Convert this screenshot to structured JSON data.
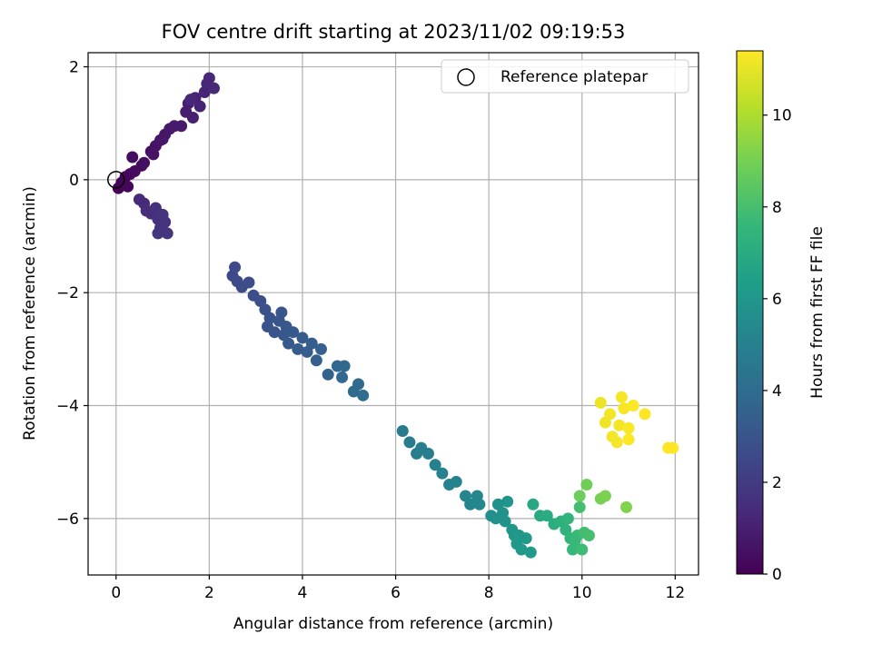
{
  "chart_data": {
    "type": "scatter",
    "title": "FOV centre drift starting at 2023/11/02 09:19:53",
    "xlabel": "Angular distance from reference (arcmin)",
    "ylabel": "Rotation from reference (arcmin)",
    "xlim": [
      -0.6,
      12.5
    ],
    "ylim": [
      -7.0,
      2.25
    ],
    "xticks": [
      0,
      2,
      4,
      6,
      8,
      10,
      12
    ],
    "yticks": [
      -6,
      -4,
      -2,
      0,
      2
    ],
    "grid": true,
    "legend": {
      "position": "top-right",
      "entries": [
        "Reference platepar"
      ]
    },
    "reference_point": {
      "x": 0,
      "y": 0,
      "marker": "open-circle"
    },
    "colorbar": {
      "label": "Hours from first FF file",
      "colormap": "viridis",
      "range": [
        0,
        11.4
      ],
      "ticks": [
        0,
        2,
        4,
        6,
        8,
        10
      ]
    },
    "colormap_stops": [
      "#440154",
      "#482878",
      "#3e4989",
      "#31688e",
      "#26828e",
      "#1f9e89",
      "#35b779",
      "#6ece58",
      "#b5de2b",
      "#fde725"
    ],
    "points": [
      {
        "x": 0.05,
        "y": -0.15,
        "c": 0.05
      },
      {
        "x": 0.12,
        "y": -0.05,
        "c": 0.1
      },
      {
        "x": 0.2,
        "y": 0.05,
        "c": 0.15
      },
      {
        "x": 0.3,
        "y": 0.1,
        "c": 0.2
      },
      {
        "x": 0.25,
        "y": -0.12,
        "c": 0.22
      },
      {
        "x": 0.4,
        "y": 0.15,
        "c": 0.3
      },
      {
        "x": 0.55,
        "y": 0.25,
        "c": 0.35
      },
      {
        "x": 0.35,
        "y": 0.4,
        "c": 0.4
      },
      {
        "x": 0.6,
        "y": 0.3,
        "c": 0.45
      },
      {
        "x": 0.75,
        "y": 0.5,
        "c": 0.5
      },
      {
        "x": 0.85,
        "y": 0.6,
        "c": 0.55
      },
      {
        "x": 0.8,
        "y": 0.45,
        "c": 0.6
      },
      {
        "x": 0.95,
        "y": 0.7,
        "c": 0.65
      },
      {
        "x": 1.05,
        "y": 0.8,
        "c": 0.7
      },
      {
        "x": 1.15,
        "y": 0.9,
        "c": 0.75
      },
      {
        "x": 1.25,
        "y": 0.95,
        "c": 0.8
      },
      {
        "x": 1.4,
        "y": 0.95,
        "c": 0.85
      },
      {
        "x": 1.5,
        "y": 1.2,
        "c": 0.9
      },
      {
        "x": 1.55,
        "y": 1.35,
        "c": 0.95
      },
      {
        "x": 1.65,
        "y": 1.1,
        "c": 1.0
      },
      {
        "x": 1.7,
        "y": 1.45,
        "c": 1.05
      },
      {
        "x": 1.8,
        "y": 1.3,
        "c": 1.1
      },
      {
        "x": 1.9,
        "y": 1.55,
        "c": 1.15
      },
      {
        "x": 1.95,
        "y": 1.7,
        "c": 1.2
      },
      {
        "x": 2.0,
        "y": 1.8,
        "c": 1.25
      },
      {
        "x": 2.1,
        "y": 1.62,
        "c": 1.3
      },
      {
        "x": 1.6,
        "y": 1.42,
        "c": 1.32
      },
      {
        "x": 1.0,
        "y": 0.72,
        "c": 0.68
      },
      {
        "x": 0.5,
        "y": -0.35,
        "c": 1.35
      },
      {
        "x": 0.6,
        "y": -0.42,
        "c": 1.4
      },
      {
        "x": 0.65,
        "y": -0.55,
        "c": 1.45
      },
      {
        "x": 0.75,
        "y": -0.6,
        "c": 1.5
      },
      {
        "x": 0.85,
        "y": -0.5,
        "c": 1.55
      },
      {
        "x": 0.9,
        "y": -0.7,
        "c": 1.6
      },
      {
        "x": 0.95,
        "y": -0.85,
        "c": 1.65
      },
      {
        "x": 1.05,
        "y": -0.75,
        "c": 1.7
      },
      {
        "x": 1.1,
        "y": -0.95,
        "c": 1.75
      },
      {
        "x": 0.9,
        "y": -0.95,
        "c": 1.78
      },
      {
        "x": 1.0,
        "y": -0.62,
        "c": 1.72
      },
      {
        "x": 2.5,
        "y": -1.7,
        "c": 2.5
      },
      {
        "x": 2.55,
        "y": -1.55,
        "c": 2.55
      },
      {
        "x": 2.6,
        "y": -1.8,
        "c": 2.6
      },
      {
        "x": 2.7,
        "y": -1.9,
        "c": 2.65
      },
      {
        "x": 2.85,
        "y": -1.82,
        "c": 2.7
      },
      {
        "x": 2.95,
        "y": -2.05,
        "c": 2.75
      },
      {
        "x": 3.1,
        "y": -2.15,
        "c": 2.8
      },
      {
        "x": 3.2,
        "y": -2.3,
        "c": 2.85
      },
      {
        "x": 3.3,
        "y": -2.45,
        "c": 2.9
      },
      {
        "x": 3.25,
        "y": -2.6,
        "c": 2.95
      },
      {
        "x": 3.4,
        "y": -2.7,
        "c": 3.0
      },
      {
        "x": 3.5,
        "y": -2.5,
        "c": 3.05
      },
      {
        "x": 3.6,
        "y": -2.75,
        "c": 3.1
      },
      {
        "x": 3.7,
        "y": -2.9,
        "c": 3.15
      },
      {
        "x": 3.8,
        "y": -2.7,
        "c": 3.2
      },
      {
        "x": 3.9,
        "y": -3.0,
        "c": 3.25
      },
      {
        "x": 4.0,
        "y": -2.8,
        "c": 3.3
      },
      {
        "x": 4.1,
        "y": -3.05,
        "c": 3.35
      },
      {
        "x": 4.2,
        "y": -2.9,
        "c": 3.4
      },
      {
        "x": 4.3,
        "y": -3.2,
        "c": 3.45
      },
      {
        "x": 4.4,
        "y": -3.0,
        "c": 3.5
      },
      {
        "x": 4.55,
        "y": -3.45,
        "c": 3.6
      },
      {
        "x": 4.75,
        "y": -3.3,
        "c": 3.7
      },
      {
        "x": 4.85,
        "y": -3.5,
        "c": 3.75
      },
      {
        "x": 4.9,
        "y": -3.3,
        "c": 3.8
      },
      {
        "x": 5.1,
        "y": -3.75,
        "c": 3.9
      },
      {
        "x": 5.2,
        "y": -3.62,
        "c": 3.95
      },
      {
        "x": 5.3,
        "y": -3.82,
        "c": 4.0
      },
      {
        "x": 3.55,
        "y": -2.35,
        "c": 3.08
      },
      {
        "x": 3.65,
        "y": -2.6,
        "c": 3.12
      },
      {
        "x": 6.15,
        "y": -4.45,
        "c": 4.7
      },
      {
        "x": 6.3,
        "y": -4.65,
        "c": 4.75
      },
      {
        "x": 6.45,
        "y": -4.85,
        "c": 4.8
      },
      {
        "x": 6.55,
        "y": -4.75,
        "c": 4.85
      },
      {
        "x": 6.7,
        "y": -4.85,
        "c": 4.9
      },
      {
        "x": 6.85,
        "y": -5.05,
        "c": 4.95
      },
      {
        "x": 7.0,
        "y": -5.2,
        "c": 5.0
      },
      {
        "x": 7.15,
        "y": -5.4,
        "c": 5.05
      },
      {
        "x": 7.3,
        "y": -5.35,
        "c": 5.1
      },
      {
        "x": 7.5,
        "y": -5.6,
        "c": 5.15
      },
      {
        "x": 7.6,
        "y": -5.75,
        "c": 5.2
      },
      {
        "x": 7.75,
        "y": -5.6,
        "c": 5.25
      },
      {
        "x": 7.8,
        "y": -5.75,
        "c": 5.3
      },
      {
        "x": 8.05,
        "y": -5.95,
        "c": 5.6
      },
      {
        "x": 8.15,
        "y": -6.0,
        "c": 5.7
      },
      {
        "x": 8.2,
        "y": -5.75,
        "c": 5.75
      },
      {
        "x": 8.3,
        "y": -5.9,
        "c": 5.8
      },
      {
        "x": 8.35,
        "y": -6.05,
        "c": 5.85
      },
      {
        "x": 8.4,
        "y": -5.7,
        "c": 5.9
      },
      {
        "x": 8.5,
        "y": -6.2,
        "c": 5.95
      },
      {
        "x": 8.55,
        "y": -6.3,
        "c": 6.0
      },
      {
        "x": 8.6,
        "y": -6.45,
        "c": 6.05
      },
      {
        "x": 8.7,
        "y": -6.55,
        "c": 6.1
      },
      {
        "x": 8.8,
        "y": -6.35,
        "c": 6.15
      },
      {
        "x": 8.9,
        "y": -6.6,
        "c": 6.2
      },
      {
        "x": 8.65,
        "y": -6.3,
        "c": 6.08
      },
      {
        "x": 8.95,
        "y": -5.75,
        "c": 6.8
      },
      {
        "x": 9.1,
        "y": -5.95,
        "c": 6.9
      },
      {
        "x": 9.25,
        "y": -5.95,
        "c": 7.0
      },
      {
        "x": 9.4,
        "y": -6.1,
        "c": 7.1
      },
      {
        "x": 9.55,
        "y": -6.05,
        "c": 7.2
      },
      {
        "x": 9.65,
        "y": -6.2,
        "c": 7.3
      },
      {
        "x": 9.7,
        "y": -6.0,
        "c": 7.4
      },
      {
        "x": 9.75,
        "y": -6.35,
        "c": 7.5
      },
      {
        "x": 9.8,
        "y": -6.55,
        "c": 7.6
      },
      {
        "x": 9.9,
        "y": -6.3,
        "c": 7.7
      },
      {
        "x": 10.0,
        "y": -6.55,
        "c": 7.8
      },
      {
        "x": 10.05,
        "y": -6.25,
        "c": 7.9
      },
      {
        "x": 10.15,
        "y": -6.3,
        "c": 8.0
      },
      {
        "x": 9.95,
        "y": -5.8,
        "c": 7.95
      },
      {
        "x": 9.85,
        "y": -6.4,
        "c": 7.65
      },
      {
        "x": 9.95,
        "y": -5.6,
        "c": 8.8
      },
      {
        "x": 10.1,
        "y": -5.4,
        "c": 8.9
      },
      {
        "x": 10.4,
        "y": -5.65,
        "c": 9.0
      },
      {
        "x": 10.5,
        "y": -5.6,
        "c": 9.1
      },
      {
        "x": 10.95,
        "y": -5.8,
        "c": 9.2
      },
      {
        "x": 10.4,
        "y": -3.95,
        "c": 11.1
      },
      {
        "x": 10.5,
        "y": -4.3,
        "c": 11.15
      },
      {
        "x": 10.6,
        "y": -4.15,
        "c": 11.2
      },
      {
        "x": 10.65,
        "y": -4.55,
        "c": 11.2
      },
      {
        "x": 10.75,
        "y": -4.65,
        "c": 11.25
      },
      {
        "x": 10.8,
        "y": -4.35,
        "c": 11.25
      },
      {
        "x": 10.85,
        "y": -3.85,
        "c": 11.3
      },
      {
        "x": 10.9,
        "y": -4.05,
        "c": 11.3
      },
      {
        "x": 11.0,
        "y": -4.4,
        "c": 11.35
      },
      {
        "x": 11.0,
        "y": -4.6,
        "c": 11.35
      },
      {
        "x": 11.1,
        "y": -4.0,
        "c": 11.35
      },
      {
        "x": 11.35,
        "y": -4.15,
        "c": 11.4
      },
      {
        "x": 11.85,
        "y": -4.75,
        "c": 11.4
      },
      {
        "x": 11.95,
        "y": -4.75,
        "c": 11.4
      }
    ]
  }
}
